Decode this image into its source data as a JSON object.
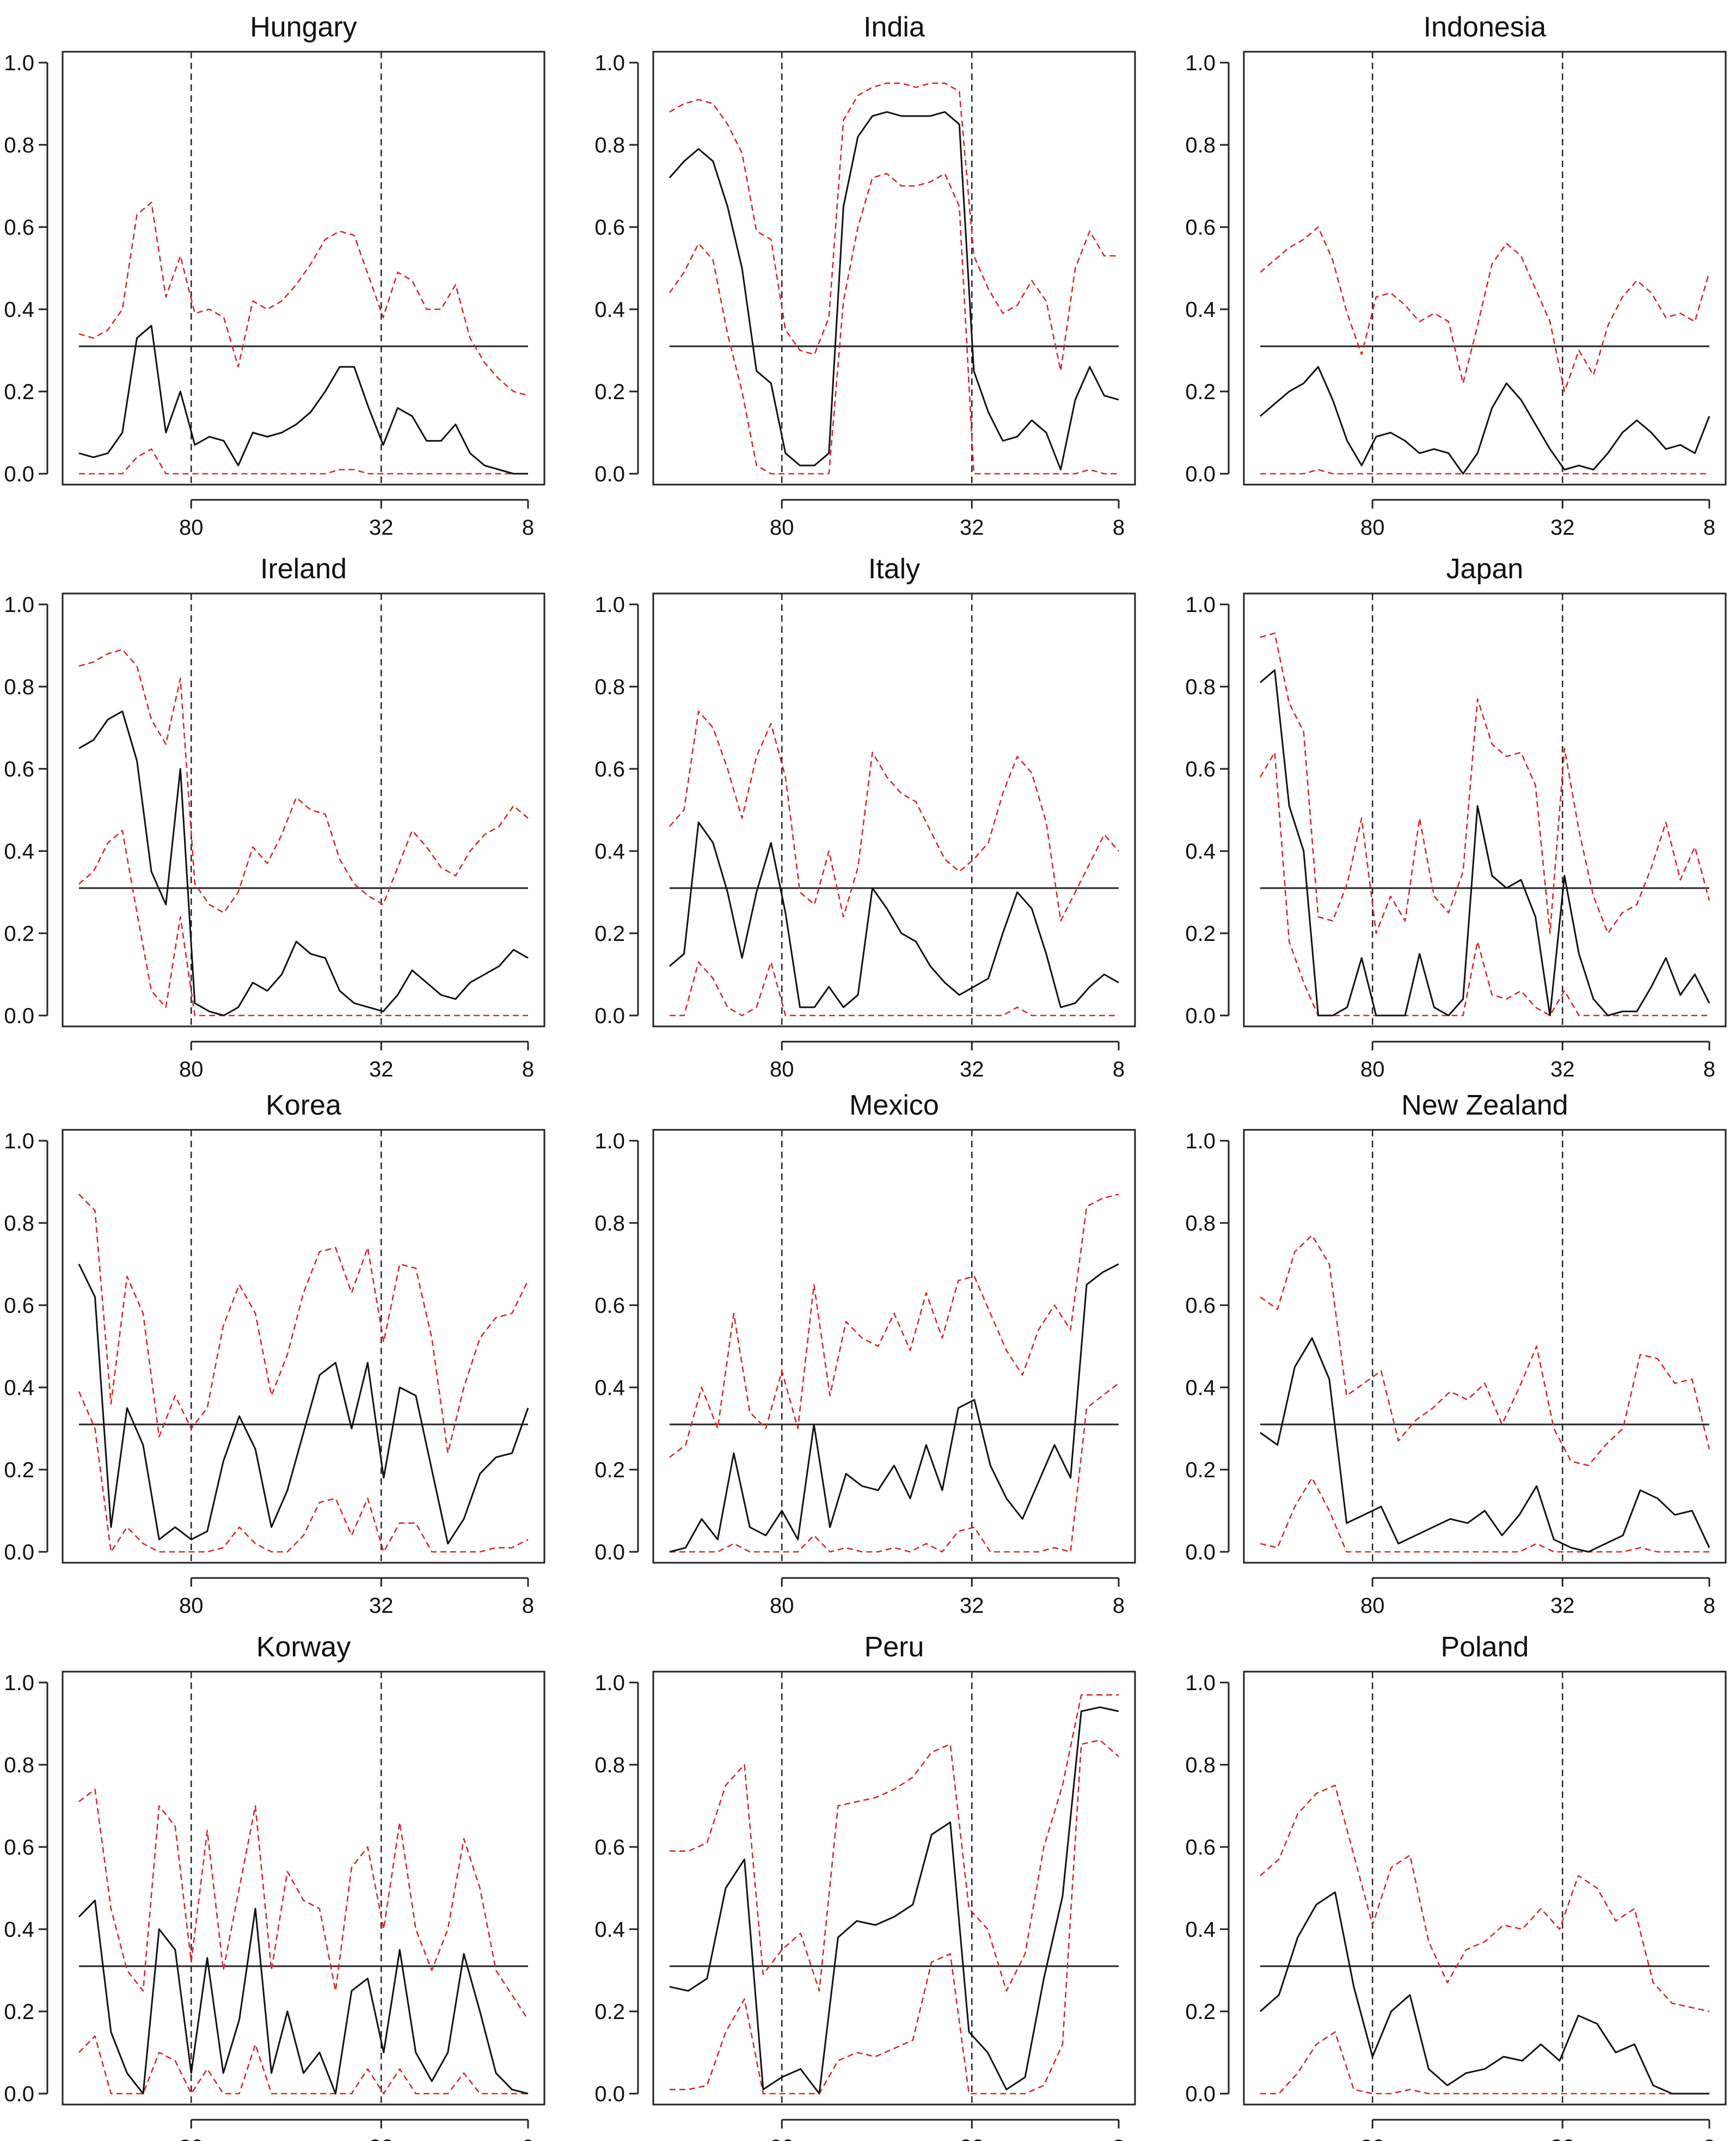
{
  "chart_data": {
    "type": "line",
    "layout": "grid-4x3",
    "x_tick_labels": [
      "80",
      "32",
      "8"
    ],
    "y_tick_labels": [
      "0.0",
      "0.2",
      "0.4",
      "0.6",
      "0.8",
      "1.0"
    ],
    "xlim": [
      1,
      53
    ],
    "ylim": [
      0,
      1
    ],
    "x_ticks": [
      14,
      36,
      53
    ],
    "vertical_reference_lines": [
      14,
      36
    ],
    "horizontal_reference_line": 0.31,
    "colors": {
      "estimate": "#000000",
      "band": "#d62a2a",
      "reference": "#000000"
    },
    "panels": [
      {
        "title": "Hungary",
        "estimate": [
          0.05,
          0.04,
          0.05,
          0.1,
          0.33,
          0.36,
          0.1,
          0.2,
          0.07,
          0.09,
          0.08,
          0.02,
          0.1,
          0.09,
          0.1,
          0.12,
          0.15,
          0.2,
          0.26,
          0.26,
          0.16,
          0.07,
          0.16,
          0.14,
          0.08,
          0.08,
          0.12,
          0.05,
          0.02,
          0.01,
          0.0,
          0.0
        ],
        "upper": [
          0.34,
          0.33,
          0.35,
          0.4,
          0.63,
          0.66,
          0.43,
          0.53,
          0.39,
          0.4,
          0.38,
          0.26,
          0.42,
          0.4,
          0.42,
          0.46,
          0.51,
          0.57,
          0.59,
          0.58,
          0.48,
          0.38,
          0.49,
          0.47,
          0.4,
          0.4,
          0.46,
          0.33,
          0.27,
          0.23,
          0.2,
          0.19
        ],
        "lower": [
          0.0,
          0.0,
          0.0,
          0.0,
          0.04,
          0.06,
          0.0,
          0.0,
          0.0,
          0.0,
          0.0,
          0.0,
          0.0,
          0.0,
          0.0,
          0.0,
          0.0,
          0.0,
          0.01,
          0.01,
          0.0,
          0.0,
          0.0,
          0.0,
          0.0,
          0.0,
          0.0,
          0.0,
          0.0,
          0.0,
          0.0,
          0.0
        ]
      },
      {
        "title": "India",
        "estimate": [
          0.72,
          0.76,
          0.79,
          0.76,
          0.65,
          0.5,
          0.25,
          0.22,
          0.05,
          0.02,
          0.02,
          0.05,
          0.65,
          0.82,
          0.87,
          0.88,
          0.87,
          0.87,
          0.87,
          0.88,
          0.85,
          0.25,
          0.15,
          0.08,
          0.09,
          0.13,
          0.1,
          0.01,
          0.18,
          0.26,
          0.19,
          0.18
        ],
        "upper": [
          0.88,
          0.9,
          0.91,
          0.9,
          0.85,
          0.78,
          0.59,
          0.57,
          0.35,
          0.3,
          0.29,
          0.38,
          0.86,
          0.92,
          0.94,
          0.95,
          0.95,
          0.94,
          0.95,
          0.95,
          0.93,
          0.53,
          0.45,
          0.39,
          0.41,
          0.47,
          0.42,
          0.25,
          0.5,
          0.59,
          0.53,
          0.53
        ],
        "lower": [
          0.44,
          0.49,
          0.56,
          0.52,
          0.34,
          0.2,
          0.02,
          0.0,
          0.0,
          0.0,
          0.0,
          0.0,
          0.42,
          0.6,
          0.72,
          0.73,
          0.7,
          0.7,
          0.71,
          0.73,
          0.65,
          0.0,
          0.0,
          0.0,
          0.0,
          0.0,
          0.0,
          0.0,
          0.0,
          0.01,
          0.0,
          0.0
        ]
      },
      {
        "title": "Indonesia",
        "estimate": [
          0.14,
          0.17,
          0.2,
          0.22,
          0.26,
          0.18,
          0.08,
          0.02,
          0.09,
          0.1,
          0.08,
          0.05,
          0.06,
          0.05,
          0.0,
          0.05,
          0.16,
          0.22,
          0.18,
          0.12,
          0.06,
          0.01,
          0.02,
          0.01,
          0.05,
          0.1,
          0.13,
          0.1,
          0.06,
          0.07,
          0.05,
          0.14
        ],
        "upper": [
          0.49,
          0.52,
          0.55,
          0.57,
          0.6,
          0.52,
          0.39,
          0.29,
          0.43,
          0.44,
          0.41,
          0.37,
          0.39,
          0.37,
          0.22,
          0.36,
          0.51,
          0.56,
          0.53,
          0.45,
          0.37,
          0.2,
          0.3,
          0.24,
          0.36,
          0.43,
          0.47,
          0.44,
          0.38,
          0.39,
          0.37,
          0.49
        ],
        "lower": [
          0.0,
          0.0,
          0.0,
          0.0,
          0.01,
          0.0,
          0.0,
          0.0,
          0.0,
          0.0,
          0.0,
          0.0,
          0.0,
          0.0,
          0.0,
          0.0,
          0.0,
          0.0,
          0.0,
          0.0,
          0.0,
          0.0,
          0.0,
          0.0,
          0.0,
          0.0,
          0.0,
          0.0,
          0.0,
          0.0,
          0.0,
          0.0
        ]
      },
      {
        "title": "Ireland",
        "estimate": [
          0.65,
          0.67,
          0.72,
          0.74,
          0.62,
          0.35,
          0.27,
          0.6,
          0.03,
          0.01,
          0.0,
          0.02,
          0.08,
          0.06,
          0.1,
          0.18,
          0.15,
          0.14,
          0.06,
          0.03,
          0.02,
          0.01,
          0.05,
          0.11,
          0.08,
          0.05,
          0.04,
          0.08,
          0.1,
          0.12,
          0.16,
          0.14
        ],
        "upper": [
          0.85,
          0.86,
          0.88,
          0.89,
          0.85,
          0.72,
          0.66,
          0.82,
          0.32,
          0.27,
          0.25,
          0.3,
          0.41,
          0.37,
          0.44,
          0.53,
          0.5,
          0.49,
          0.38,
          0.32,
          0.29,
          0.27,
          0.36,
          0.45,
          0.41,
          0.36,
          0.34,
          0.4,
          0.44,
          0.46,
          0.51,
          0.48
        ],
        "lower": [
          0.32,
          0.35,
          0.42,
          0.45,
          0.25,
          0.06,
          0.02,
          0.24,
          0.0,
          0.0,
          0.0,
          0.0,
          0.0,
          0.0,
          0.0,
          0.0,
          0.0,
          0.0,
          0.0,
          0.0,
          0.0,
          0.0,
          0.0,
          0.0,
          0.0,
          0.0,
          0.0,
          0.0,
          0.0,
          0.0,
          0.0,
          0.0
        ]
      },
      {
        "title": "Italy",
        "estimate": [
          0.12,
          0.15,
          0.47,
          0.42,
          0.3,
          0.14,
          0.3,
          0.42,
          0.25,
          0.02,
          0.02,
          0.07,
          0.02,
          0.05,
          0.31,
          0.26,
          0.2,
          0.18,
          0.12,
          0.08,
          0.05,
          0.07,
          0.09,
          0.2,
          0.3,
          0.26,
          0.15,
          0.02,
          0.03,
          0.07,
          0.1,
          0.08
        ],
        "upper": [
          0.46,
          0.5,
          0.74,
          0.7,
          0.6,
          0.48,
          0.63,
          0.71,
          0.58,
          0.3,
          0.27,
          0.4,
          0.24,
          0.36,
          0.64,
          0.58,
          0.54,
          0.52,
          0.45,
          0.38,
          0.35,
          0.38,
          0.42,
          0.54,
          0.63,
          0.59,
          0.47,
          0.23,
          0.3,
          0.37,
          0.44,
          0.4
        ],
        "lower": [
          0.0,
          0.0,
          0.13,
          0.09,
          0.02,
          0.0,
          0.02,
          0.13,
          0.0,
          0.0,
          0.0,
          0.0,
          0.0,
          0.0,
          0.0,
          0.0,
          0.0,
          0.0,
          0.0,
          0.0,
          0.0,
          0.0,
          0.0,
          0.0,
          0.02,
          0.0,
          0.0,
          0.0,
          0.0,
          0.0,
          0.0,
          0.0
        ]
      },
      {
        "title": "Japan",
        "estimate": [
          0.81,
          0.84,
          0.51,
          0.4,
          0.0,
          0.0,
          0.02,
          0.14,
          0.0,
          0.0,
          0.0,
          0.15,
          0.02,
          0.0,
          0.04,
          0.51,
          0.34,
          0.31,
          0.33,
          0.24,
          0.0,
          0.34,
          0.15,
          0.04,
          0.0,
          0.01,
          0.01,
          0.07,
          0.14,
          0.05,
          0.1,
          0.03
        ],
        "upper": [
          0.92,
          0.93,
          0.76,
          0.69,
          0.24,
          0.23,
          0.32,
          0.48,
          0.2,
          0.29,
          0.23,
          0.48,
          0.29,
          0.25,
          0.35,
          0.77,
          0.66,
          0.63,
          0.64,
          0.56,
          0.2,
          0.65,
          0.45,
          0.29,
          0.2,
          0.25,
          0.27,
          0.36,
          0.47,
          0.33,
          0.41,
          0.28
        ],
        "lower": [
          0.58,
          0.64,
          0.18,
          0.08,
          0.0,
          0.0,
          0.0,
          0.0,
          0.0,
          0.0,
          0.0,
          0.0,
          0.0,
          0.0,
          0.0,
          0.18,
          0.05,
          0.04,
          0.06,
          0.02,
          0.0,
          0.06,
          0.0,
          0.0,
          0.0,
          0.0,
          0.0,
          0.0,
          0.0,
          0.0,
          0.0,
          0.0
        ]
      },
      {
        "title": "Korea",
        "estimate": [
          0.7,
          0.62,
          0.06,
          0.35,
          0.26,
          0.03,
          0.06,
          0.03,
          0.05,
          0.22,
          0.33,
          0.25,
          0.06,
          0.15,
          0.29,
          0.43,
          0.46,
          0.3,
          0.46,
          0.18,
          0.4,
          0.38,
          0.2,
          0.02,
          0.08,
          0.19,
          0.23,
          0.24,
          0.35
        ],
        "upper": [
          0.87,
          0.83,
          0.36,
          0.67,
          0.58,
          0.28,
          0.38,
          0.3,
          0.35,
          0.55,
          0.65,
          0.58,
          0.38,
          0.48,
          0.63,
          0.73,
          0.74,
          0.63,
          0.74,
          0.51,
          0.7,
          0.69,
          0.52,
          0.24,
          0.4,
          0.52,
          0.57,
          0.58,
          0.66
        ],
        "lower": [
          0.39,
          0.3,
          0.0,
          0.06,
          0.02,
          0.0,
          0.0,
          0.0,
          0.0,
          0.01,
          0.06,
          0.02,
          0.0,
          0.0,
          0.04,
          0.12,
          0.13,
          0.04,
          0.13,
          0.0,
          0.07,
          0.07,
          0.0,
          0.0,
          0.0,
          0.0,
          0.01,
          0.01,
          0.03
        ]
      },
      {
        "title": "Mexico",
        "estimate": [
          0.0,
          0.01,
          0.08,
          0.03,
          0.24,
          0.06,
          0.04,
          0.1,
          0.03,
          0.31,
          0.06,
          0.19,
          0.16,
          0.15,
          0.21,
          0.13,
          0.26,
          0.15,
          0.35,
          0.37,
          0.21,
          0.13,
          0.08,
          0.17,
          0.26,
          0.18,
          0.65,
          0.68,
          0.7
        ],
        "upper": [
          0.23,
          0.26,
          0.4,
          0.3,
          0.58,
          0.34,
          0.3,
          0.44,
          0.3,
          0.65,
          0.38,
          0.56,
          0.52,
          0.5,
          0.58,
          0.49,
          0.63,
          0.52,
          0.66,
          0.67,
          0.58,
          0.49,
          0.43,
          0.54,
          0.6,
          0.54,
          0.84,
          0.86,
          0.87
        ],
        "lower": [
          0.0,
          0.0,
          0.0,
          0.0,
          0.02,
          0.0,
          0.0,
          0.0,
          0.0,
          0.04,
          0.0,
          0.01,
          0.0,
          0.0,
          0.01,
          0.0,
          0.02,
          0.0,
          0.05,
          0.06,
          0.0,
          0.0,
          0.0,
          0.0,
          0.01,
          0.0,
          0.35,
          0.38,
          0.41
        ]
      },
      {
        "title": "New Zealand",
        "estimate": [
          0.29,
          0.26,
          0.45,
          0.52,
          0.42,
          0.07,
          0.09,
          0.11,
          0.02,
          0.04,
          0.06,
          0.08,
          0.07,
          0.1,
          0.04,
          0.09,
          0.16,
          0.03,
          0.01,
          0.0,
          0.02,
          0.04,
          0.15,
          0.13,
          0.09,
          0.1,
          0.01
        ],
        "upper": [
          0.62,
          0.59,
          0.73,
          0.77,
          0.7,
          0.38,
          0.41,
          0.44,
          0.27,
          0.32,
          0.35,
          0.39,
          0.37,
          0.41,
          0.31,
          0.4,
          0.5,
          0.3,
          0.22,
          0.21,
          0.26,
          0.3,
          0.48,
          0.47,
          0.41,
          0.42,
          0.25
        ],
        "lower": [
          0.02,
          0.01,
          0.11,
          0.18,
          0.1,
          0.0,
          0.0,
          0.0,
          0.0,
          0.0,
          0.0,
          0.0,
          0.0,
          0.0,
          0.0,
          0.0,
          0.02,
          0.0,
          0.0,
          0.0,
          0.0,
          0.0,
          0.01,
          0.0,
          0.0,
          0.0,
          0.0
        ]
      },
      {
        "title": "Korway",
        "estimate": [
          0.43,
          0.47,
          0.15,
          0.05,
          0.0,
          0.4,
          0.35,
          0.05,
          0.33,
          0.05,
          0.18,
          0.45,
          0.05,
          0.2,
          0.05,
          0.1,
          0.0,
          0.25,
          0.28,
          0.1,
          0.35,
          0.1,
          0.03,
          0.1,
          0.34,
          0.2,
          0.05,
          0.01,
          0.0
        ],
        "upper": [
          0.71,
          0.74,
          0.45,
          0.3,
          0.25,
          0.7,
          0.65,
          0.32,
          0.64,
          0.3,
          0.5,
          0.7,
          0.3,
          0.54,
          0.47,
          0.45,
          0.25,
          0.55,
          0.6,
          0.4,
          0.66,
          0.4,
          0.3,
          0.4,
          0.62,
          0.5,
          0.3,
          0.24,
          0.18
        ],
        "lower": [
          0.1,
          0.14,
          0.0,
          0.0,
          0.0,
          0.1,
          0.08,
          0.0,
          0.06,
          0.0,
          0.0,
          0.12,
          0.0,
          0.0,
          0.0,
          0.0,
          0.0,
          0.0,
          0.06,
          0.0,
          0.06,
          0.0,
          0.0,
          0.0,
          0.05,
          0.0,
          0.0,
          0.0,
          0.0
        ]
      },
      {
        "title": "Peru",
        "estimate": [
          0.26,
          0.25,
          0.28,
          0.5,
          0.57,
          0.01,
          0.04,
          0.06,
          0.0,
          0.38,
          0.42,
          0.41,
          0.43,
          0.46,
          0.63,
          0.66,
          0.15,
          0.1,
          0.01,
          0.04,
          0.28,
          0.48,
          0.93,
          0.94,
          0.93
        ],
        "upper": [
          0.59,
          0.59,
          0.61,
          0.75,
          0.8,
          0.29,
          0.35,
          0.39,
          0.25,
          0.7,
          0.71,
          0.72,
          0.74,
          0.77,
          0.83,
          0.85,
          0.45,
          0.4,
          0.25,
          0.34,
          0.6,
          0.75,
          0.97,
          0.97,
          0.97
        ],
        "lower": [
          0.01,
          0.01,
          0.02,
          0.15,
          0.23,
          0.0,
          0.0,
          0.0,
          0.0,
          0.08,
          0.1,
          0.09,
          0.11,
          0.13,
          0.32,
          0.34,
          0.0,
          0.0,
          0.0,
          0.0,
          0.02,
          0.12,
          0.85,
          0.86,
          0.82
        ]
      },
      {
        "title": "Poland",
        "estimate": [
          0.2,
          0.24,
          0.38,
          0.46,
          0.49,
          0.26,
          0.09,
          0.2,
          0.24,
          0.06,
          0.02,
          0.05,
          0.06,
          0.09,
          0.08,
          0.12,
          0.08,
          0.19,
          0.17,
          0.1,
          0.12,
          0.02,
          0.0,
          0.0,
          0.0
        ],
        "upper": [
          0.53,
          0.57,
          0.68,
          0.73,
          0.75,
          0.58,
          0.41,
          0.55,
          0.58,
          0.37,
          0.27,
          0.35,
          0.37,
          0.41,
          0.4,
          0.45,
          0.4,
          0.53,
          0.5,
          0.42,
          0.45,
          0.27,
          0.22,
          0.21,
          0.2
        ],
        "lower": [
          0.0,
          0.0,
          0.05,
          0.12,
          0.15,
          0.01,
          0.0,
          0.0,
          0.01,
          0.0,
          0.0,
          0.0,
          0.0,
          0.0,
          0.0,
          0.0,
          0.0,
          0.0,
          0.0,
          0.0,
          0.0,
          0.0,
          0.0,
          0.0,
          0.0
        ]
      }
    ]
  }
}
